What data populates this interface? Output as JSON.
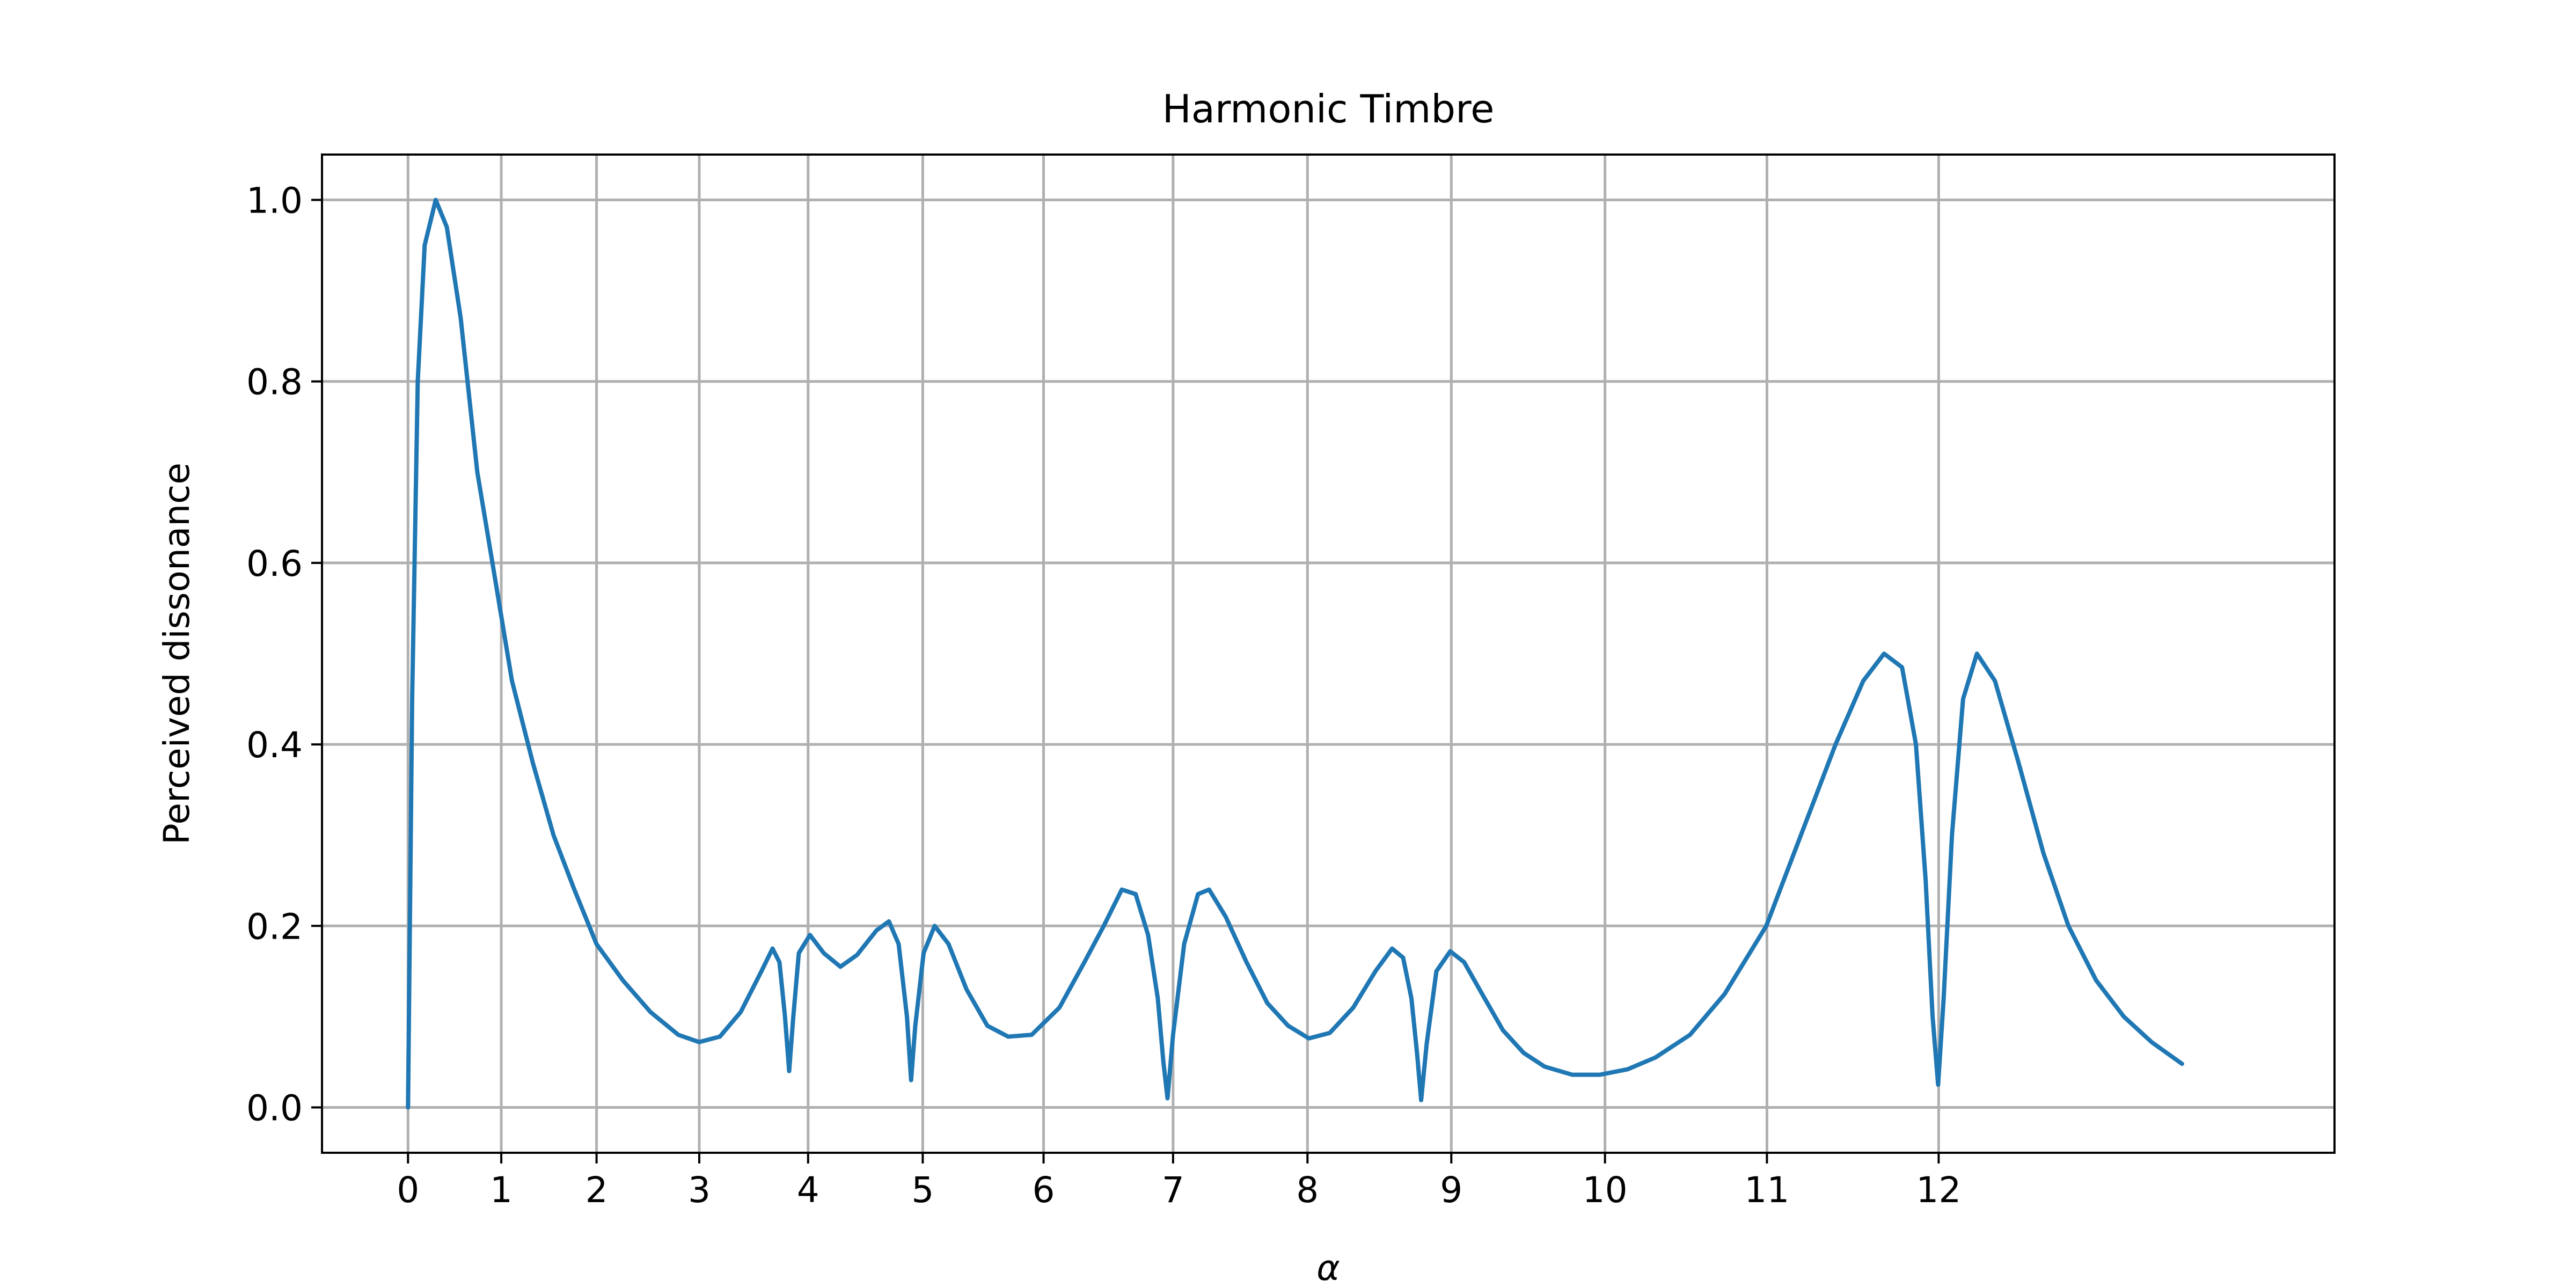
{
  "chart_data": {
    "type": "line",
    "title": "Harmonic Timbre",
    "xlabel": "α",
    "ylabel": "Perceived dissonance",
    "xlim": [
      -0.6206,
      13.9
    ],
    "ylim": [
      -0.05,
      1.05
    ],
    "grid": true,
    "x_ticks": [
      {
        "value": 0.0,
        "label": "0"
      },
      {
        "value": 0.6729,
        "label": "1"
      },
      {
        "value": 1.3603,
        "label": "2"
      },
      {
        "value": 2.1014,
        "label": "3"
      },
      {
        "value": 2.8867,
        "label": "4"
      },
      {
        "value": 3.7138,
        "label": "5"
      },
      {
        "value": 4.5856,
        "label": "6"
      },
      {
        "value": 5.52,
        "label": "7"
      },
      {
        "value": 6.4898,
        "label": "8"
      },
      {
        "value": 7.5276,
        "label": "9"
      },
      {
        "value": 8.6364,
        "label": "10"
      },
      {
        "value": 9.8049,
        "label": "11"
      },
      {
        "value": 11.0439,
        "label": "12"
      }
    ],
    "y_ticks": [
      {
        "value": 0.0,
        "label": "0.0"
      },
      {
        "value": 0.2,
        "label": "0.2"
      },
      {
        "value": 0.4,
        "label": "0.4"
      },
      {
        "value": 0.6,
        "label": "0.6"
      },
      {
        "value": 0.8,
        "label": "0.8"
      },
      {
        "value": 1.0,
        "label": "1.0"
      }
    ],
    "series": [
      {
        "color": "#1f77b4",
        "points": [
          [
            0.0,
            0.0
          ],
          [
            0.03,
            0.45
          ],
          [
            0.07,
            0.8
          ],
          [
            0.12,
            0.95
          ],
          [
            0.2,
            1.0
          ],
          [
            0.28,
            0.97
          ],
          [
            0.38,
            0.87
          ],
          [
            0.5,
            0.7
          ],
          [
            0.62,
            0.59
          ],
          [
            0.75,
            0.47
          ],
          [
            0.9,
            0.38
          ],
          [
            1.05,
            0.3
          ],
          [
            1.2,
            0.24
          ],
          [
            1.36,
            0.18
          ],
          [
            1.55,
            0.14
          ],
          [
            1.75,
            0.105
          ],
          [
            1.95,
            0.08
          ],
          [
            2.1,
            0.072
          ],
          [
            2.25,
            0.078
          ],
          [
            2.4,
            0.105
          ],
          [
            2.55,
            0.15
          ],
          [
            2.63,
            0.175
          ],
          [
            2.68,
            0.16
          ],
          [
            2.72,
            0.1
          ],
          [
            2.75,
            0.04
          ],
          [
            2.78,
            0.1
          ],
          [
            2.82,
            0.17
          ],
          [
            2.9,
            0.19
          ],
          [
            3.0,
            0.17
          ],
          [
            3.12,
            0.155
          ],
          [
            3.24,
            0.168
          ],
          [
            3.38,
            0.195
          ],
          [
            3.47,
            0.205
          ],
          [
            3.54,
            0.18
          ],
          [
            3.6,
            0.1
          ],
          [
            3.63,
            0.03
          ],
          [
            3.66,
            0.09
          ],
          [
            3.72,
            0.17
          ],
          [
            3.8,
            0.2
          ],
          [
            3.9,
            0.18
          ],
          [
            4.03,
            0.13
          ],
          [
            4.18,
            0.09
          ],
          [
            4.33,
            0.078
          ],
          [
            4.5,
            0.08
          ],
          [
            4.7,
            0.11
          ],
          [
            4.88,
            0.16
          ],
          [
            5.02,
            0.2
          ],
          [
            5.15,
            0.24
          ],
          [
            5.25,
            0.235
          ],
          [
            5.34,
            0.19
          ],
          [
            5.41,
            0.12
          ],
          [
            5.45,
            0.05
          ],
          [
            5.48,
            0.01
          ],
          [
            5.52,
            0.08
          ],
          [
            5.6,
            0.18
          ],
          [
            5.7,
            0.235
          ],
          [
            5.78,
            0.24
          ],
          [
            5.9,
            0.21
          ],
          [
            6.05,
            0.16
          ],
          [
            6.2,
            0.115
          ],
          [
            6.35,
            0.09
          ],
          [
            6.5,
            0.076
          ],
          [
            6.65,
            0.082
          ],
          [
            6.82,
            0.11
          ],
          [
            6.98,
            0.15
          ],
          [
            7.1,
            0.175
          ],
          [
            7.18,
            0.165
          ],
          [
            7.24,
            0.12
          ],
          [
            7.28,
            0.06
          ],
          [
            7.31,
            0.008
          ],
          [
            7.35,
            0.07
          ],
          [
            7.42,
            0.15
          ],
          [
            7.52,
            0.172
          ],
          [
            7.62,
            0.16
          ],
          [
            7.75,
            0.125
          ],
          [
            7.9,
            0.085
          ],
          [
            8.05,
            0.06
          ],
          [
            8.2,
            0.045
          ],
          [
            8.4,
            0.036
          ],
          [
            8.6,
            0.036
          ],
          [
            8.8,
            0.042
          ],
          [
            9.0,
            0.055
          ],
          [
            9.25,
            0.08
          ],
          [
            9.5,
            0.125
          ],
          [
            9.8,
            0.2
          ],
          [
            10.05,
            0.3
          ],
          [
            10.3,
            0.4
          ],
          [
            10.5,
            0.47
          ],
          [
            10.65,
            0.5
          ],
          [
            10.78,
            0.485
          ],
          [
            10.88,
            0.4
          ],
          [
            10.95,
            0.25
          ],
          [
            11.0,
            0.1
          ],
          [
            11.04,
            0.025
          ],
          [
            11.08,
            0.12
          ],
          [
            11.14,
            0.3
          ],
          [
            11.22,
            0.45
          ],
          [
            11.32,
            0.5
          ],
          [
            11.45,
            0.47
          ],
          [
            11.62,
            0.38
          ],
          [
            11.8,
            0.28
          ],
          [
            11.98,
            0.2
          ],
          [
            12.18,
            0.14
          ],
          [
            12.38,
            0.1
          ],
          [
            12.58,
            0.072
          ],
          [
            12.8,
            0.048
          ]
        ]
      }
    ]
  }
}
